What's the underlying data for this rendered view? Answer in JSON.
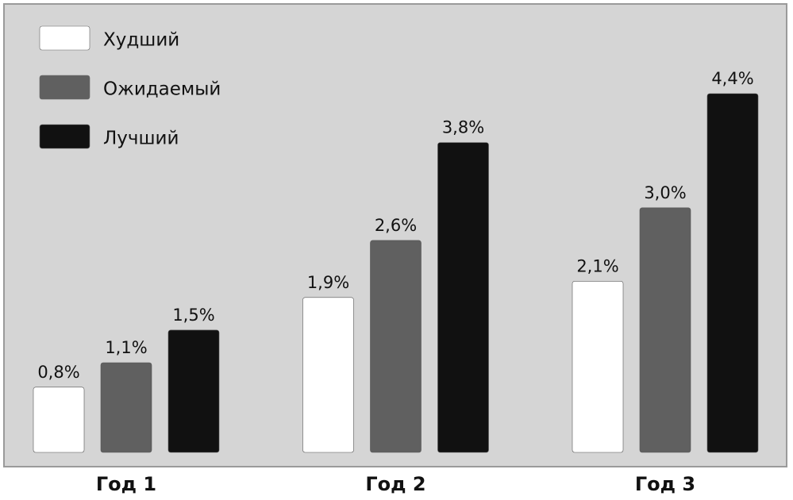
{
  "chart_data": {
    "type": "bar",
    "categories": [
      "Год 1",
      "Год 2",
      "Год 3"
    ],
    "series": [
      {
        "name": "Худший",
        "color": "#ffffff",
        "values": [
          0.8,
          1.9,
          2.1
        ],
        "value_labels": [
          "0,8%",
          "1,9%",
          "2,1%"
        ]
      },
      {
        "name": "Ожидаемый",
        "color": "#606060",
        "values": [
          1.1,
          2.6,
          3.0
        ],
        "value_labels": [
          "1,1%",
          "2,6%",
          "3,0%"
        ]
      },
      {
        "name": "Лучший",
        "color": "#111111",
        "values": [
          1.5,
          3.8,
          4.4
        ],
        "value_labels": [
          "1,5%",
          "3,8%",
          "4,4%"
        ]
      }
    ],
    "legend": "upper left"
  }
}
